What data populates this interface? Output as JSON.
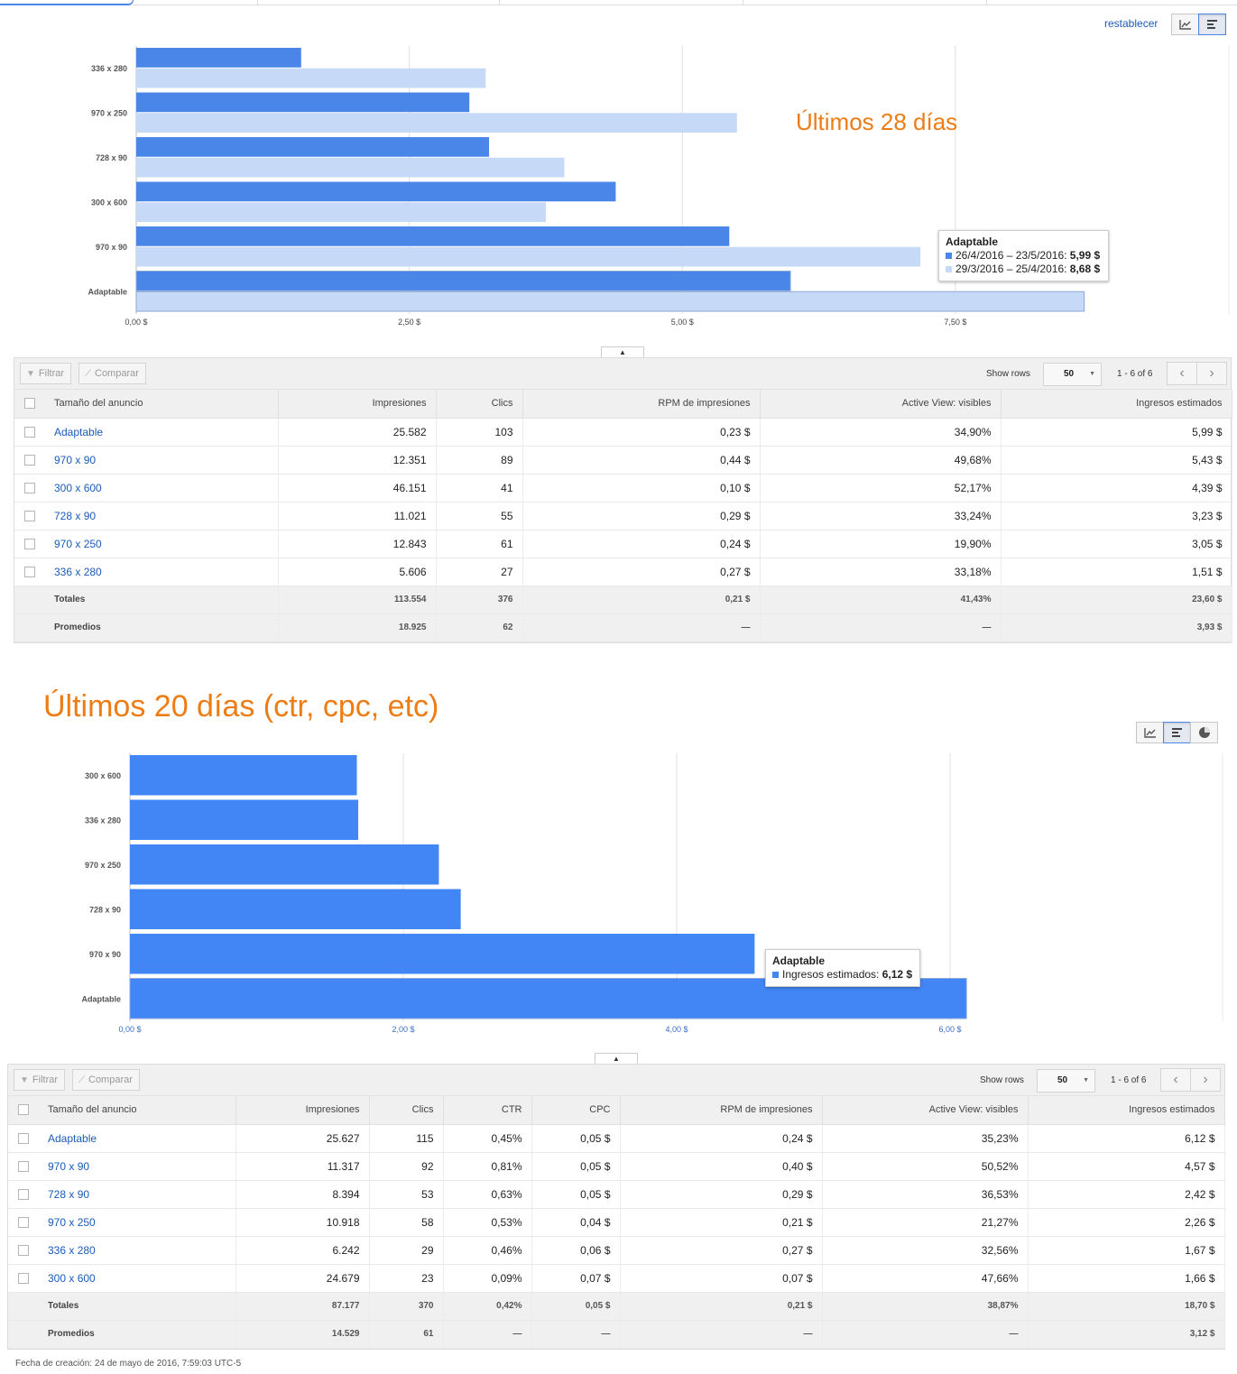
{
  "toolbar_top": {
    "reset_label": "restablecer"
  },
  "chart1": {
    "overlay_title": "Últimos 28 días",
    "tooltip": {
      "title": "Adaptable",
      "rows": [
        {
          "label": "26/4/2016 – 23/5/2016: ",
          "value": "5,99 $",
          "color": "#4a86e8"
        },
        {
          "label": "29/3/2016 – 25/4/2016: ",
          "value": "8,68 $",
          "color": "#c6d9f7"
        }
      ]
    }
  },
  "chart2": {
    "tooltip": {
      "title": "Adaptable",
      "rows": [
        {
          "label": "Ingresos estimados: ",
          "value": "6,12 $",
          "color": "#4285f4"
        }
      ]
    }
  },
  "section2_title": "Últimos 20 días (ctr, cpc, etc)",
  "chart_data": [
    {
      "type": "bar",
      "orientation": "horizontal",
      "title": "",
      "categories": [
        "336 x 280",
        "970 x 250",
        "728 x 90",
        "300 x 600",
        "970 x 90",
        "Adaptable"
      ],
      "series": [
        {
          "name": "26/4/2016 – 23/5/2016",
          "color": "#4a86e8",
          "values": [
            1.51,
            3.05,
            3.23,
            4.39,
            5.43,
            5.99
          ]
        },
        {
          "name": "29/3/2016 – 25/4/2016",
          "color": "#c6d9f7",
          "values": [
            3.2,
            5.5,
            3.92,
            3.75,
            7.18,
            8.68
          ]
        }
      ],
      "xlim": [
        0,
        8.6
      ],
      "xticks": [
        0,
        2.5,
        5,
        7.5
      ],
      "xtick_labels": [
        "0,00 $",
        "2,50 $",
        "5,00 $",
        "7,50 $"
      ],
      "grid": true
    },
    {
      "type": "bar",
      "orientation": "horizontal",
      "title": "",
      "categories": [
        "300 x 600",
        "336 x 280",
        "970 x 250",
        "728 x 90",
        "970 x 90",
        "Adaptable"
      ],
      "series": [
        {
          "name": "Ingresos estimados",
          "color": "#4285f4",
          "values": [
            1.66,
            1.67,
            2.26,
            2.42,
            4.57,
            6.12
          ]
        }
      ],
      "xlim": [
        0,
        6.0
      ],
      "xticks": [
        0,
        2,
        4,
        6
      ],
      "xtick_labels": [
        "0,00 $",
        "2,00 $",
        "4,00 $",
        "6,00 $"
      ],
      "grid": true
    }
  ],
  "table1": {
    "filter_label": "Filtrar",
    "compare_label": "Comparar",
    "show_rows_label": "Show rows",
    "rows_value": "50",
    "page_info": "1 - 6 of 6",
    "headers": [
      "Tamaño del anuncio",
      "Impresiones",
      "Clics",
      "RPM de impresiones",
      "Active View: visibles",
      "Ingresos estimados"
    ],
    "rows": [
      [
        "Adaptable",
        "25.582",
        "103",
        "0,23 $",
        "34,90%",
        "5,99 $"
      ],
      [
        "970 x 90",
        "12.351",
        "89",
        "0,44 $",
        "49,68%",
        "5,43 $"
      ],
      [
        "300 x 600",
        "46.151",
        "41",
        "0,10 $",
        "52,17%",
        "4,39 $"
      ],
      [
        "728 x 90",
        "11.021",
        "55",
        "0,29 $",
        "33,24%",
        "3,23 $"
      ],
      [
        "970 x 250",
        "12.843",
        "61",
        "0,24 $",
        "19,90%",
        "3,05 $"
      ],
      [
        "336 x 280",
        "5.606",
        "27",
        "0,27 $",
        "33,18%",
        "1,51 $"
      ]
    ],
    "totals": [
      "Totales",
      "113.554",
      "376",
      "0,21 $",
      "41,43%",
      "23,60 $"
    ],
    "averages": [
      "Promedios",
      "18.925",
      "62",
      "—",
      "—",
      "3,93 $"
    ]
  },
  "table2": {
    "filter_label": "Filtrar",
    "compare_label": "Comparar",
    "show_rows_label": "Show rows",
    "rows_value": "50",
    "page_info": "1 - 6 of 6",
    "headers": [
      "Tamaño del anuncio",
      "Impresiones",
      "Clics",
      "CTR",
      "CPC",
      "RPM de impresiones",
      "Active View: visibles",
      "Ingresos estimados"
    ],
    "rows": [
      [
        "Adaptable",
        "25.627",
        "115",
        "0,45%",
        "0,05 $",
        "0,24 $",
        "35,23%",
        "6,12 $"
      ],
      [
        "970 x 90",
        "11.317",
        "92",
        "0,81%",
        "0,05 $",
        "0,40 $",
        "50,52%",
        "4,57 $"
      ],
      [
        "728 x 90",
        "8.394",
        "53",
        "0,63%",
        "0,05 $",
        "0,29 $",
        "36,53%",
        "2,42 $"
      ],
      [
        "970 x 250",
        "10.918",
        "58",
        "0,53%",
        "0,04 $",
        "0,21 $",
        "21,27%",
        "2,26 $"
      ],
      [
        "336 x 280",
        "6.242",
        "29",
        "0,46%",
        "0,06 $",
        "0,27 $",
        "32,56%",
        "1,67 $"
      ],
      [
        "300 x 600",
        "24.679",
        "23",
        "0,09%",
        "0,07 $",
        "0,07 $",
        "47,66%",
        "1,66 $"
      ]
    ],
    "totals": [
      "Totales",
      "87.177",
      "370",
      "0,42%",
      "0,05 $",
      "0,21 $",
      "38,87%",
      "18,70 $"
    ],
    "averages": [
      "Promedios",
      "14.529",
      "61",
      "—",
      "—",
      "—",
      "—",
      "3,12 $"
    ]
  },
  "footer": "Fecha de creación: 24 de mayo de 2016, 7:59:03 UTC-5"
}
